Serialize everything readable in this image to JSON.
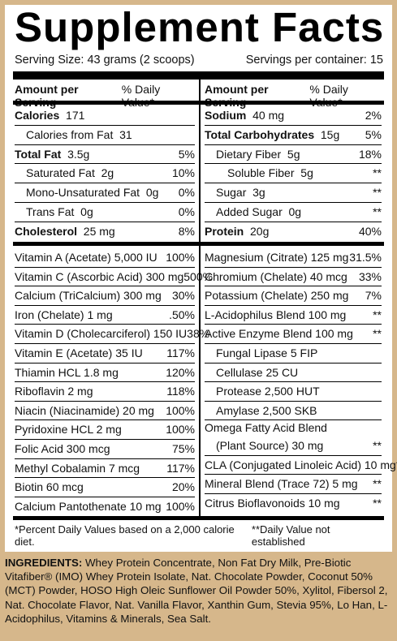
{
  "title": "Supplement Facts",
  "serving_size": "Serving Size:  43 grams (2 scoops)",
  "servings_per_container": "Servings per container:  15",
  "header": {
    "amount": "Amount per Serving",
    "dv": "% Daily Value*"
  },
  "left_top": [
    {
      "label": "Calories",
      "bold": true,
      "amount": "171",
      "dv": "",
      "indent": 0
    },
    {
      "label": "Calories from Fat",
      "bold": false,
      "amount": "31",
      "dv": "",
      "indent": 1
    },
    {
      "label": "Total Fat",
      "bold": true,
      "amount": "3.5g",
      "dv": "5%",
      "indent": 0
    },
    {
      "label": "Saturated Fat",
      "bold": false,
      "amount": "2g",
      "dv": "10%",
      "indent": 1
    },
    {
      "label": "Mono-Unsaturated Fat",
      "bold": false,
      "amount": "0g",
      "dv": "0%",
      "indent": 1
    },
    {
      "label": "Trans Fat",
      "bold": false,
      "amount": "0g",
      "dv": "0%",
      "indent": 1
    },
    {
      "label": "Cholesterol",
      "bold": true,
      "amount": "25 mg",
      "dv": "8%",
      "indent": 0
    }
  ],
  "right_top": [
    {
      "label": "Sodium",
      "bold": true,
      "amount": "40 mg",
      "dv": "2%",
      "indent": 0
    },
    {
      "label": "Total Carbohydrates",
      "bold": true,
      "amount": "15g",
      "dv": "5%",
      "indent": 0
    },
    {
      "label": "Dietary Fiber",
      "bold": false,
      "amount": "5g",
      "dv": "18%",
      "indent": 1
    },
    {
      "label": "Soluble Fiber",
      "bold": false,
      "amount": "5g",
      "dv": "**",
      "indent": 2
    },
    {
      "label": "Sugar",
      "bold": false,
      "amount": "3g",
      "dv": "**",
      "indent": 1
    },
    {
      "label": "Added Sugar",
      "bold": false,
      "amount": "0g",
      "dv": "**",
      "indent": 1
    },
    {
      "label": "Protein",
      "bold": true,
      "amount": "20g",
      "dv": "40%",
      "indent": 0
    }
  ],
  "left_bottom": [
    {
      "label": "Vitamin A (Acetate) 5,000 IU",
      "dv": "100%"
    },
    {
      "label": "Vitamin C (Ascorbic Acid) 300 mg",
      "dv": "500%"
    },
    {
      "label": "Calcium (TriCalcium) 300 mg",
      "dv": "30%"
    },
    {
      "label": "Iron (Chelate) 1 mg",
      "dv": ".50%"
    },
    {
      "label": "Vitamin D (Cholecarciferol) 150 IU",
      "dv": "38%"
    },
    {
      "label": "Vitamin E (Acetate) 35 IU",
      "dv": "117%"
    },
    {
      "label": "Thiamin HCL 1.8 mg",
      "dv": "120%"
    },
    {
      "label": "Riboflavin 2 mg",
      "dv": "118%"
    },
    {
      "label": "Niacin (Niacinamide) 20 mg",
      "dv": "100%"
    },
    {
      "label": "Pyridoxine HCL 2 mg",
      "dv": "100%"
    },
    {
      "label": "Folic Acid 300 mcg",
      "dv": "75%"
    },
    {
      "label": "Methyl Cobalamin 7 mcg",
      "dv": "117%"
    },
    {
      "label": "Biotin 60 mcg",
      "dv": "20%"
    },
    {
      "label": "Calcium Pantothenate 10 mg",
      "dv": "100%"
    }
  ],
  "right_bottom": [
    {
      "label": "Magnesium (Citrate) 125 mg",
      "dv": "31.5%",
      "indent": 0
    },
    {
      "label": "Chromium (Chelate) 40 mcg",
      "dv": "33%",
      "indent": 0
    },
    {
      "label": "Potassium (Chelate) 250 mg",
      "dv": "7%",
      "indent": 0
    },
    {
      "label": "L-Acidophilus Blend 100 mg",
      "dv": "**",
      "indent": 0
    },
    {
      "label": "Active Enzyme Blend 100 mg",
      "dv": "**",
      "indent": 0
    },
    {
      "label": "Fungal Lipase 5 FIP",
      "dv": "",
      "indent": 1
    },
    {
      "label": "Cellulase 25 CU",
      "dv": "",
      "indent": 1
    },
    {
      "label": "Protease 2,500 HUT",
      "dv": "",
      "indent": 1
    },
    {
      "label": "Amylase 2,500 SKB",
      "dv": "",
      "indent": 1
    },
    {
      "label": "Omega Fatty Acid Blend",
      "label2": "(Plant Source) 30 mg",
      "dv": "**",
      "indent": 0
    },
    {
      "label": "CLA (Conjugated Linoleic Acid) 10 mg",
      "dv": "**",
      "indent": 0
    },
    {
      "label": "Mineral Blend (Trace 72) 5 mg",
      "dv": "**",
      "indent": 0
    },
    {
      "label": "Citrus Bioflavonoids 10 mg",
      "dv": "**",
      "indent": 0
    }
  ],
  "footnote_left": "*Percent Daily Values based on a 2,000 calorie diet.",
  "footnote_right": "**Daily Value not established",
  "ingredients_label": "INGREDIENTS:",
  "ingredients_text": " Whey Protein Concentrate, Non Fat Dry Milk, Pre-Biotic Vitafiber® (IMO) Whey Protein Isolate, Nat. Chocolate Powder, Coconut 50% (MCT) Powder, HOSO High Oleic Sunflower Oil Powder 50%, Xylitol, Fibersol 2, Nat. Chocolate Flavor, Nat. Vanilla Flavor, Xanthin Gum, Stevia 95%, Lo Han, L-Acidophilus, Vitamins & Minerals, Sea Salt."
}
